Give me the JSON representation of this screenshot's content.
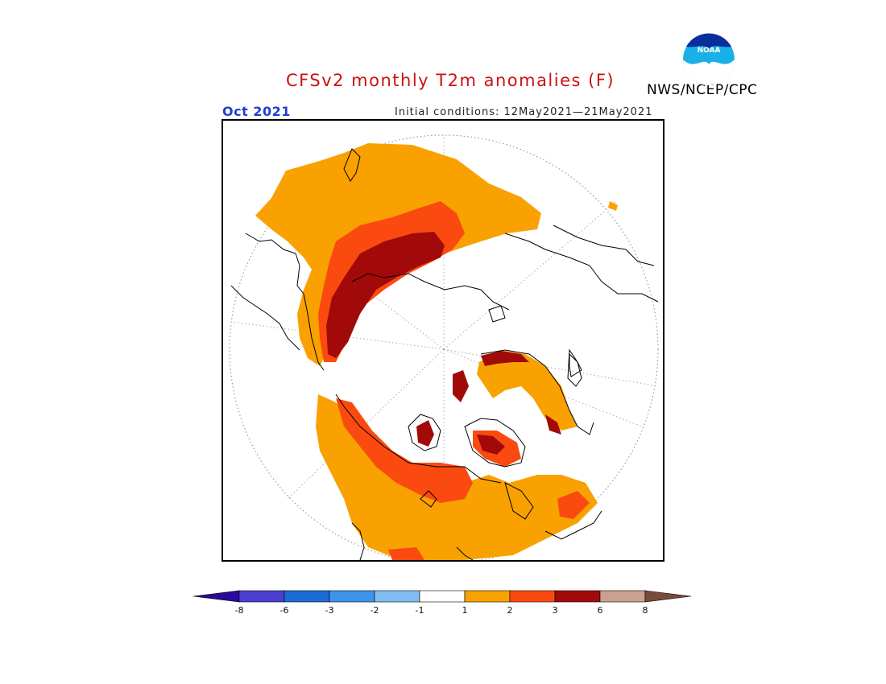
{
  "title": "CFSv2 monthly T2m anomalies (F)",
  "period": "Oct 2021",
  "initial_conditions": "Initial conditions: 12May2021—21May2021",
  "agency": "NWS/NCEP/CPC",
  "logo_text": "NOAA",
  "legend": {
    "colors": [
      "#2a0a9a",
      "#4a3fd0",
      "#1c6ad6",
      "#3c93ea",
      "#82bcf0",
      "#ffffff",
      "#f9a100",
      "#fa4a10",
      "#a20a0a",
      "#cba08f",
      "#7a4a3a"
    ],
    "labels": [
      "-8",
      "-6",
      "-3",
      "-2",
      "-1",
      "1",
      "2",
      "3",
      "6",
      "8"
    ]
  }
}
